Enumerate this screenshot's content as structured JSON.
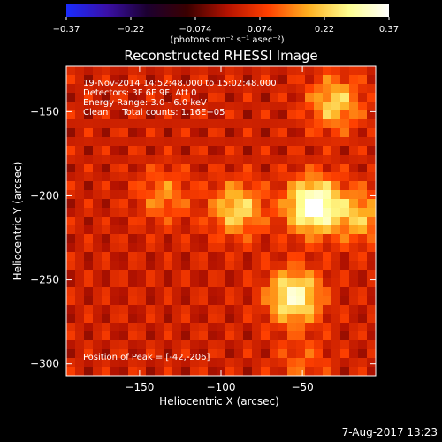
{
  "chart_data": {
    "type": "heatmap",
    "title": "Reconstructed RHESSI Image",
    "xlabel": "Heliocentric X (arcsec)",
    "ylabel": "Heliocentric Y (arcsec)",
    "xlim": [
      -195,
      -5
    ],
    "ylim": [
      -307,
      -123
    ],
    "x_ticks": [
      -150,
      -100,
      -50
    ],
    "y_ticks": [
      -150,
      -200,
      -250,
      -300
    ],
    "colorbar": {
      "range": [
        -0.37,
        0.37
      ],
      "tick_labels": [
        "-0.37",
        "-0.22",
        "-0.074",
        "0.074",
        "0.22",
        "0.37"
      ],
      "units_label": "(photons cm⁻² s⁻¹ asec⁻²)",
      "colors": [
        "#1a2cff",
        "#3a10a8",
        "#1c0030",
        "#3a0000",
        "#b41200",
        "#ff4000",
        "#ffb020",
        "#ffff90",
        "#ffffff"
      ]
    },
    "info_lines": [
      "19-Nov-2014 14:52:48.000 to 15:02:48.000",
      "Detectors: 3F 6F 9F, Att 0",
      "Energy Range: 3.0 - 6.0 keV",
      "Clean     Total counts: 1.16E+05"
    ],
    "peak_label": "Position of Peak = [-42,-206]",
    "sources": [
      {
        "x": -43,
        "y": -206,
        "peak": 0.37
      },
      {
        "x": -55,
        "y": -260,
        "peak": 0.29
      },
      {
        "x": -90,
        "y": -208,
        "peak": 0.21
      },
      {
        "x": -30,
        "y": -145,
        "peak": 0.2
      },
      {
        "x": -15,
        "y": -212,
        "peak": 0.17
      },
      {
        "x": -135,
        "y": -200,
        "peak": 0.12
      },
      {
        "x": -50,
        "y": -300,
        "peak": 0.08
      }
    ]
  },
  "footer": {
    "timestamp": "7-Aug-2017 13:23"
  }
}
